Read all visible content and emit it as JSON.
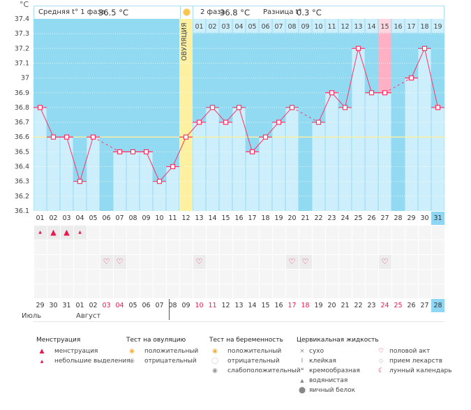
{
  "header": {
    "unit": "°C",
    "phase1_label": "Средняя t° 1 фаза",
    "phase1_value": "36.5 °C",
    "phase2_label": "2 фаза",
    "phase2_value": "36.8 °C",
    "diff_label": "Разница t°",
    "diff_value": "0.3 °C",
    "ovulation_label": "ОВУЛЯЦИЯ",
    "sun_icon": "sun-icon"
  },
  "colors": {
    "bg_dark": "#92d9f2",
    "bar": "#cdeefb",
    "line": "#ff3366",
    "ovulation": "#fdf0a0",
    "marker_day": "#ffb0c4",
    "coverline": "#f8f0a0",
    "weekend": "#e8194f"
  },
  "phase2_days": [
    "01",
    "02",
    "03",
    "04",
    "05",
    "06",
    "07",
    "08",
    "09",
    "10",
    "11",
    "12",
    "13",
    "14",
    "15",
    "16",
    "17",
    "18",
    "19"
  ],
  "chart_data": {
    "type": "line",
    "x": [
      1,
      2,
      3,
      4,
      5,
      6,
      7,
      8,
      9,
      10,
      11,
      12,
      13,
      14,
      15,
      16,
      17,
      18,
      19,
      20,
      21,
      22,
      23,
      24,
      25,
      26,
      27,
      28,
      29,
      30,
      31
    ],
    "values": [
      36.8,
      36.6,
      36.6,
      36.3,
      36.6,
      null,
      36.5,
      36.5,
      36.5,
      36.3,
      36.4,
      36.6,
      36.7,
      36.8,
      36.7,
      36.8,
      36.5,
      36.6,
      36.7,
      36.8,
      null,
      36.7,
      36.9,
      36.8,
      37.2,
      36.9,
      36.9,
      null,
      37.0,
      37.2,
      36.8
    ],
    "ylim": [
      36.1,
      37.4
    ],
    "yticks": [
      "37.4",
      "37.3",
      "37.2",
      "37.1",
      "37",
      "36.9",
      "36.8",
      "36.7",
      "36.6",
      "36.5",
      "36.4",
      "36.3",
      "36.2",
      "36.1"
    ],
    "coverline": 36.6,
    "ovulation_day": 12,
    "highlight_day": 27,
    "grid": true
  },
  "cycle_days": [
    "01",
    "02",
    "03",
    "04",
    "05",
    "06",
    "07",
    "08",
    "09",
    "10",
    "11",
    "12",
    "13",
    "14",
    "15",
    "16",
    "17",
    "18",
    "19",
    "20",
    "21",
    "22",
    "23",
    "24",
    "25",
    "26",
    "27",
    "28",
    "29",
    "30",
    "31"
  ],
  "dates": [
    "29",
    "30",
    "31",
    "01",
    "02",
    "03",
    "04",
    "05",
    "06",
    "07",
    "08",
    "09",
    "10",
    "11",
    "12",
    "13",
    "14",
    "15",
    "16",
    "17",
    "18",
    "19",
    "20",
    "21",
    "22",
    "23",
    "24",
    "25",
    "26",
    "27",
    "28"
  ],
  "weekend_dates_idx": [
    5,
    6,
    12,
    13,
    19,
    20,
    26,
    27
  ],
  "months": [
    "Июль",
    "Август"
  ],
  "menstruation": {
    "1": "small",
    "2": "heavy",
    "3": "heavy",
    "4": "small"
  },
  "intercourse_days": [
    6,
    7,
    13,
    20,
    21,
    27
  ],
  "legend": {
    "menstruation": {
      "title": "Менструация",
      "items": [
        "менструация",
        "небольшие выделения"
      ]
    },
    "ovulation_test": {
      "title": "Тест на овуляцию",
      "items": [
        "положительный",
        "отрицательный"
      ]
    },
    "pregnancy_test": {
      "title": "Тест на беременность",
      "items": [
        "положительный",
        "отрицательный",
        "слабоположительный"
      ]
    },
    "cervical": {
      "title": "Цервикальная жидкость",
      "items": [
        "сухо",
        "клейкая",
        "кремообразная",
        "водянистая",
        "яичный белок"
      ]
    },
    "other": {
      "items": [
        "половой акт",
        "прием лекарств",
        "лунный календарь"
      ]
    }
  }
}
